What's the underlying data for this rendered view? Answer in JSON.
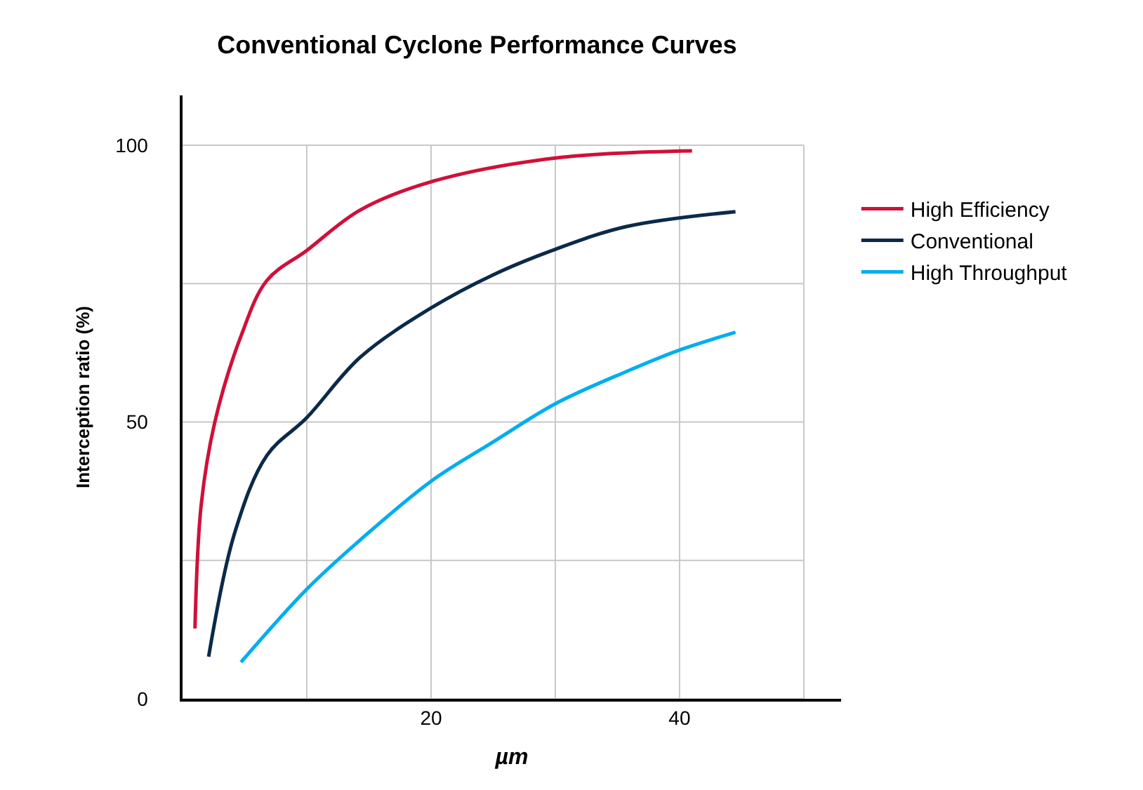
{
  "chart_data": {
    "type": "line",
    "title": "Conventional Cyclone Performance Curves",
    "xlabel": "µm",
    "ylabel": "Interception ratio (%)",
    "xlim": [
      0,
      53
    ],
    "ylim": [
      0,
      109
    ],
    "xticks": [
      {
        "value": 10,
        "label": null
      },
      20,
      {
        "value": 30,
        "label": null
      },
      40,
      {
        "value": 50,
        "label": null
      }
    ],
    "yticks": [
      0,
      {
        "value": 25,
        "label": null
      },
      50,
      {
        "value": 75,
        "label": null
      },
      100
    ],
    "grid": true,
    "legend": "right",
    "marker": "none",
    "line_style": "solid",
    "series": [
      {
        "name": "High Efficiency",
        "color": "#d0103a",
        "x": [
          1.0,
          1.5,
          2.6,
          4.7,
          6.8,
          10,
          14.3,
          20,
          30,
          41
        ],
        "values": [
          12.7,
          35,
          50,
          65.5,
          75.6,
          81,
          88.3,
          93.4,
          97.7,
          99
        ]
      },
      {
        "name": "Conventional",
        "color": "#0b2a4a",
        "x": [
          2.1,
          4.2,
          6.8,
          10,
          14.3,
          20,
          25,
          30,
          35.7,
          44.5
        ],
        "values": [
          7.6,
          30,
          44,
          50.8,
          61.7,
          70.6,
          76.6,
          81.2,
          85.3,
          88
        ]
      },
      {
        "name": "High Throughput",
        "color": "#00aeef",
        "x": [
          4.7,
          10,
          14.3,
          20,
          25,
          30,
          35.7,
          40,
          44.5
        ],
        "values": [
          6.6,
          19.8,
          28.7,
          39.3,
          46.4,
          53.3,
          59.1,
          63,
          66.2
        ]
      }
    ]
  }
}
